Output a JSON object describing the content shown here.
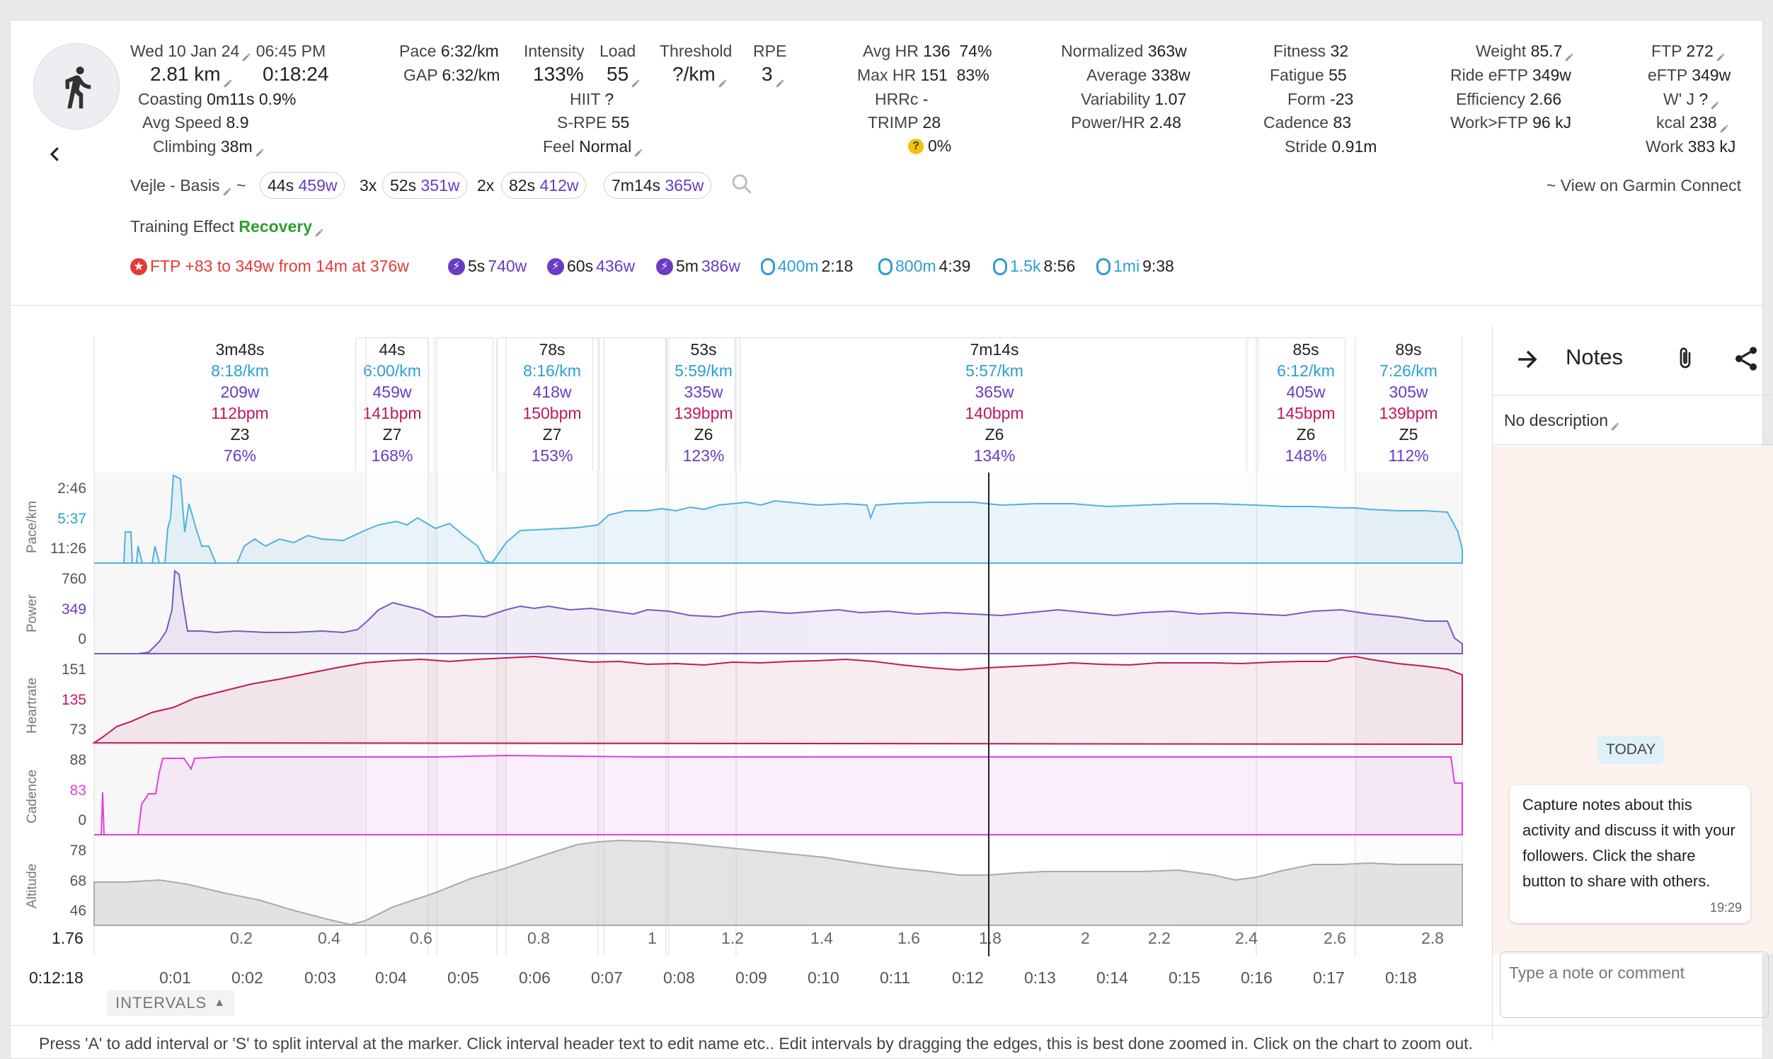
{
  "header": {
    "date": "Wed 10 Jan 24",
    "time": "06:45 PM",
    "distance": "2.81 km",
    "duration": "0:18:24",
    "coasting_label": "Coasting",
    "coasting_value": "0m11s",
    "coasting_pct": "0.9%",
    "avg_speed_label": "Avg Speed",
    "avg_speed_value": "8.9",
    "climbing_label": "Climbing",
    "climbing_value": "38m"
  },
  "stats": {
    "pace_label": "Pace",
    "pace_value": "6:32/km",
    "gap_label": "GAP",
    "gap_value": "6:32/km",
    "intensity_label": "Intensity",
    "intensity_value": "133%",
    "load_label": "Load",
    "load_value": "55",
    "threshold_label": "Threshold",
    "threshold_value": "?/km",
    "rpe_label": "RPE",
    "rpe_value": "3",
    "hiit_label": "HIIT",
    "hiit_value": "?",
    "srpe_label": "S-RPE",
    "srpe_value": "55",
    "feel_label": "Feel",
    "feel_value": "Normal",
    "avg_hr_label": "Avg HR",
    "avg_hr_value": "136",
    "avg_hr_pct": "74%",
    "max_hr_label": "Max HR",
    "max_hr_value": "151",
    "max_hr_pct": "83%",
    "hrrc_label": "HRRc",
    "hrrc_value": "-",
    "trimp_label": "TRIMP",
    "trimp_value": "28",
    "warn_value": "0%",
    "normalized_label": "Normalized",
    "normalized_value": "363w",
    "average_label": "Average",
    "average_value": "338w",
    "variability_label": "Variability",
    "variability_value": "1.07",
    "powerhr_label": "Power/HR",
    "powerhr_value": "2.48",
    "fitness_label": "Fitness",
    "fitness_value": "32",
    "fatigue_label": "Fatigue",
    "fatigue_value": "55",
    "form_label": "Form",
    "form_value": "-23",
    "cadence_label": "Cadence",
    "cadence_value": "83",
    "stride_label": "Stride",
    "stride_value": "0.91m",
    "weight_label": "Weight",
    "weight_value": "85.7",
    "ride_eftp_label": "Ride eFTP",
    "ride_eftp_value": "349w",
    "efficiency_label": "Efficiency",
    "efficiency_value": "2.66",
    "workftp_label": "Work>FTP",
    "workftp_value": "96 kJ",
    "ftp_label": "FTP",
    "ftp_value": "272",
    "eftp_label": "eFTP",
    "eftp_value": "349w",
    "wj_label": "W' J",
    "wj_value": "?",
    "kcal_label": "kcal",
    "kcal_value": "238",
    "work_label": "Work",
    "work_value": "383 kJ"
  },
  "workout": {
    "name": "Vejle - Basis",
    "tilde": "~",
    "chip1_time": "44s",
    "chip1_watts": "459w",
    "chip2_reps": "3x",
    "chip2_time": "52s",
    "chip2_watts": "351w",
    "chip3_reps": "2x",
    "chip3_time": "82s",
    "chip3_watts": "412w",
    "chip4_time": "7m14s",
    "chip4_watts": "365w",
    "garmin_link": "~ View on Garmin Connect"
  },
  "training_effect": {
    "label": "Training Effect",
    "value": "Recovery"
  },
  "bests": [
    {
      "text": "FTP +83 to 349w from 14m at 376w",
      "kind": "ftp"
    },
    {
      "a": "5s",
      "b": "740w",
      "kind": "power"
    },
    {
      "a": "60s",
      "b": "436w",
      "kind": "power"
    },
    {
      "a": "5m",
      "b": "386w",
      "kind": "power"
    },
    {
      "a": "400m",
      "b": "2:18",
      "kind": "pace"
    },
    {
      "a": "800m",
      "b": "4:39",
      "kind": "pace"
    },
    {
      "a": "1.5k",
      "b": "8:56",
      "kind": "pace"
    },
    {
      "a": "1mi",
      "b": "9:38",
      "kind": "pace"
    }
  ],
  "intervals": [
    {
      "duration": "3m48s",
      "pace": "8:18/km",
      "power": "209w",
      "hr": "112bpm",
      "zone": "Z3",
      "pct": "76%"
    },
    {
      "duration": "44s",
      "pace": "6:00/km",
      "power": "459w",
      "hr": "141bpm",
      "zone": "Z7",
      "pct": "168%"
    },
    {
      "duration": "78s",
      "pace": "8:16/km",
      "power": "418w",
      "hr": "150bpm",
      "zone": "Z7",
      "pct": "153%"
    },
    {
      "duration": "53s",
      "pace": "5:59/km",
      "power": "335w",
      "hr": "139bpm",
      "zone": "Z6",
      "pct": "123%"
    },
    {
      "duration": "7m14s",
      "pace": "5:57/km",
      "power": "365w",
      "hr": "140bpm",
      "zone": "Z6",
      "pct": "134%"
    },
    {
      "duration": "85s",
      "pace": "6:12/km",
      "power": "405w",
      "hr": "145bpm",
      "zone": "Z6",
      "pct": "148%"
    },
    {
      "duration": "89s",
      "pace": "7:26/km",
      "power": "305w",
      "hr": "139bpm",
      "zone": "Z5",
      "pct": "112%"
    }
  ],
  "charts": {
    "pace": {
      "title": "Pace/km",
      "ticks": [
        "2:46",
        "5:37",
        "11:26"
      ],
      "color": "#4fb3dd"
    },
    "power": {
      "title": "Power",
      "ticks": [
        "760",
        "349",
        "0"
      ],
      "color": "#7e57c2"
    },
    "heartrate": {
      "title": "Heartrate",
      "ticks": [
        "151",
        "135",
        "73"
      ],
      "color": "#c2185b"
    },
    "cadence": {
      "title": "Cadence",
      "ticks": [
        "88",
        "83",
        "0"
      ],
      "color": "#e040e0"
    },
    "altitude": {
      "title": "Altitude",
      "ticks": [
        "78",
        "68",
        "46"
      ],
      "color": "#aaaaaa"
    }
  },
  "x_axis": {
    "distance_readout": "1.76",
    "time_readout": "0:12:18",
    "distance_ticks": [
      "0.2",
      "0.4",
      "0.6",
      "0.8",
      "1",
      "1.2",
      "1.4",
      "1.6",
      "1.8",
      "2",
      "2.2",
      "2.4",
      "2.6",
      "2.8"
    ],
    "time_ticks": [
      "0:01",
      "0:02",
      "0:03",
      "0:04",
      "0:05",
      "0:06",
      "0:07",
      "0:08",
      "0:09",
      "0:10",
      "0:11",
      "0:12",
      "0:13",
      "0:14",
      "0:15",
      "0:16",
      "0:17",
      "0:18"
    ]
  },
  "intervals_toggle": "INTERVALS",
  "notes": {
    "title": "Notes",
    "description": "No description",
    "today": "TODAY",
    "message": "Capture notes about this activity and discuss it with your followers. Click the share button to share with others.",
    "message_time": "19:29",
    "placeholder": "Type a note or comment"
  },
  "footer": "Press 'A' to add interval or 'S' to split interval at the marker. Click interval header text to edit name etc.. Edit intervals by dragging the edges, this is best done zoomed in. Click on the chart to zoom out."
}
